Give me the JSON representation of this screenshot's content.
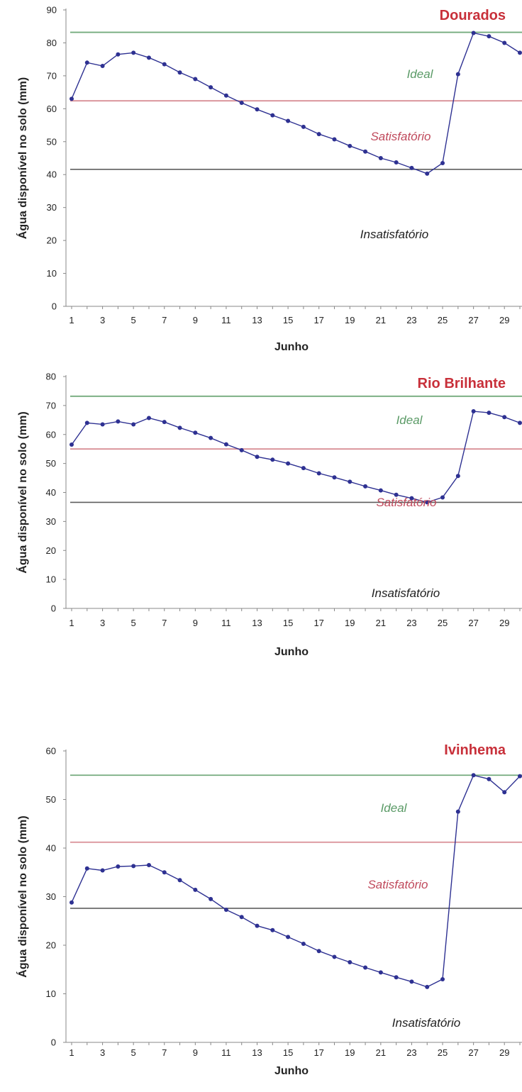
{
  "colors": {
    "ideal": "#74ab7d",
    "satisfactory": "#d98f96",
    "unsatisfactory": "#5e5e5e",
    "title": "#c8303a",
    "series_line": "#2e3192",
    "series_marker": "#2e3192",
    "axis": "#888888",
    "ideal_text": "#5a9a66",
    "satisfactory_text": "#c04a5c",
    "unsatisfactory_text": "#222222"
  },
  "chart_data": [
    {
      "type": "line",
      "title": "Dourados",
      "xlabel": "Junho",
      "ylabel": "Água disponível no solo (mm)",
      "ylim": [
        0,
        90
      ],
      "xlim": [
        1,
        30
      ],
      "yticks": [
        0,
        10,
        20,
        30,
        40,
        50,
        60,
        70,
        80,
        90
      ],
      "xticks": [
        1,
        3,
        5,
        7,
        9,
        11,
        13,
        15,
        17,
        19,
        21,
        23,
        25,
        27,
        29
      ],
      "thresholds": [
        {
          "name": "Ideal",
          "value": 83.2
        },
        {
          "name": "Satisfatório",
          "value": 62.4
        },
        {
          "name": "Insatisfatório",
          "value": 41.6
        }
      ],
      "zone_labels": [
        "Ideal",
        "Satisfatório",
        "Insatisfatório"
      ],
      "x": [
        1,
        2,
        3,
        4,
        5,
        6,
        7,
        8,
        9,
        10,
        11,
        12,
        13,
        14,
        15,
        16,
        17,
        18,
        19,
        20,
        21,
        22,
        23,
        24,
        25,
        26,
        27,
        28,
        29,
        30
      ],
      "values": [
        63,
        74,
        73,
        76.5,
        77,
        75.5,
        73.5,
        71,
        69,
        66.5,
        64,
        61.8,
        59.8,
        58,
        56.3,
        54.5,
        52.3,
        50.7,
        48.7,
        47,
        45,
        43.7,
        42,
        40.3,
        43.5,
        70.5,
        83,
        82,
        80,
        77
      ]
    },
    {
      "type": "line",
      "title": "Rio Brilhante",
      "xlabel": "Junho",
      "ylabel": "Água disponível no solo (mm)",
      "ylim": [
        0,
        80
      ],
      "xlim": [
        1,
        30
      ],
      "yticks": [
        0,
        10,
        20,
        30,
        40,
        50,
        60,
        70,
        80
      ],
      "xticks": [
        1,
        3,
        5,
        7,
        9,
        11,
        13,
        15,
        17,
        19,
        21,
        23,
        25,
        27,
        29
      ],
      "thresholds": [
        {
          "name": "Ideal",
          "value": 73.2
        },
        {
          "name": "Satisfatório",
          "value": 55
        },
        {
          "name": "Insatisfatório",
          "value": 36.6
        }
      ],
      "zone_labels": [
        "Ideal",
        "Satisfatório",
        "Insatisfatório"
      ],
      "x": [
        1,
        2,
        3,
        4,
        5,
        6,
        7,
        8,
        9,
        10,
        11,
        12,
        13,
        14,
        15,
        16,
        17,
        18,
        19,
        20,
        21,
        22,
        23,
        24,
        25,
        26,
        27,
        28,
        29,
        30
      ],
      "values": [
        56.5,
        64,
        63.5,
        64.5,
        63.5,
        65.7,
        64.3,
        62.3,
        60.6,
        58.8,
        56.6,
        54.6,
        52.3,
        51.3,
        50,
        48.4,
        46.6,
        45.2,
        43.7,
        42.1,
        40.7,
        39.2,
        38,
        36.6,
        38.3,
        45.7,
        68,
        67.5,
        66,
        64
      ]
    },
    {
      "type": "line",
      "title": "Ivinhema",
      "xlabel": "Junho",
      "ylabel": "Água disponível no solo (mm)",
      "ylim": [
        0,
        60
      ],
      "xlim": [
        1,
        30
      ],
      "yticks": [
        0,
        10,
        20,
        30,
        40,
        50,
        60
      ],
      "xticks": [
        1,
        3,
        5,
        7,
        9,
        11,
        13,
        15,
        17,
        19,
        21,
        23,
        25,
        27,
        29
      ],
      "thresholds": [
        {
          "name": "Ideal",
          "value": 55
        },
        {
          "name": "Satisfatório",
          "value": 41.2
        },
        {
          "name": "Insatisfatório",
          "value": 27.6
        }
      ],
      "zone_labels": [
        "Ideal",
        "Satisfatório",
        "Insatisfatório"
      ],
      "x": [
        1,
        2,
        3,
        4,
        5,
        6,
        7,
        8,
        9,
        10,
        11,
        12,
        13,
        14,
        15,
        16,
        17,
        18,
        19,
        20,
        21,
        22,
        23,
        24,
        25,
        26,
        27,
        28,
        29,
        30
      ],
      "values": [
        28.8,
        35.8,
        35.4,
        36.2,
        36.3,
        36.5,
        35,
        33.4,
        31.4,
        29.5,
        27.3,
        25.8,
        24,
        23.1,
        21.7,
        20.3,
        18.8,
        17.6,
        16.5,
        15.4,
        14.4,
        13.4,
        12.5,
        11.4,
        13,
        47.5,
        55,
        54.2,
        51.5,
        54.8
      ]
    }
  ]
}
